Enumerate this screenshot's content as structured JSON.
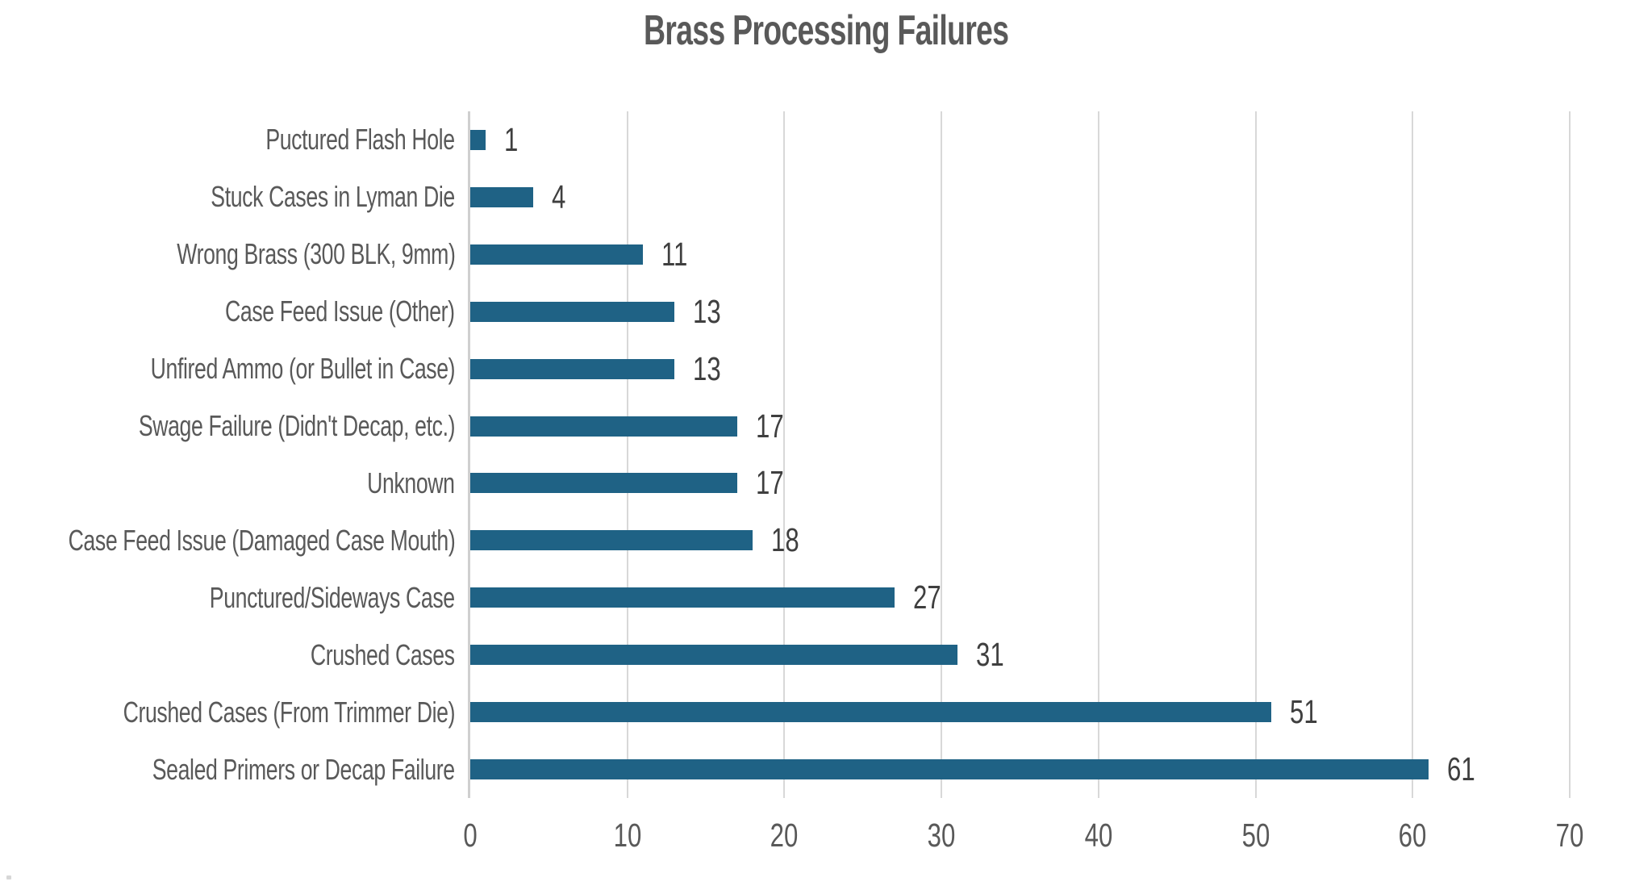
{
  "colors": {
    "bar": "#1f6285",
    "grid": "#d8d8d8",
    "axis": "#cfcfcf",
    "title_text": "#595959",
    "label_text": "#595959",
    "value_text": "#3f3f3f",
    "tick_text": "#595959",
    "background": "#ffffff"
  },
  "chart_data": {
    "type": "bar",
    "orientation": "horizontal",
    "title": "Brass Processing Failures",
    "categories": [
      "Puctured Flash Hole",
      "Stuck Cases in Lyman Die",
      "Wrong Brass (300 BLK, 9mm)",
      "Case Feed Issue (Other)",
      "Unfired Ammo (or Bullet in Case)",
      "Swage Failure (Didn't Decap, etc.)",
      "Unknown",
      "Case Feed Issue (Damaged Case Mouth)",
      "Punctured/Sideways Case",
      "Crushed Cases",
      "Crushed Cases (From Trimmer Die)",
      "Sealed Primers or Decap Failure"
    ],
    "values": [
      1,
      4,
      11,
      13,
      13,
      17,
      17,
      18,
      27,
      31,
      51,
      61
    ],
    "data_labels_shown": true,
    "xlabel": "",
    "ylabel": "",
    "xlim": [
      0,
      70
    ],
    "x_ticks": [
      0,
      10,
      20,
      30,
      40,
      50,
      60,
      70
    ],
    "grid": "vertical-only",
    "legend": "none"
  }
}
